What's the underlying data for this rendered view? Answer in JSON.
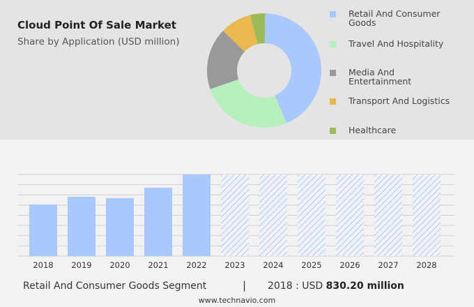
{
  "title": "Cloud Point Of Sale Market",
  "subtitle": "Share by Application (USD million)",
  "chart_data": [
    {
      "type": "pie",
      "donut": true,
      "segments": [
        {
          "name": "Retail And Consumer Goods",
          "share": 43.6,
          "color": "#a9c9fc"
        },
        {
          "name": "Travel And Hospitality",
          "share": 26.1,
          "color": "#b8efbf"
        },
        {
          "name": "Media And Entertainment",
          "share": 17.5,
          "color": "#999999"
        },
        {
          "name": "Transport And Logistics",
          "share": 8.9,
          "color": "#e9b94f"
        },
        {
          "name": "Healthcare",
          "share": 4.2,
          "color": "#9ebb5a"
        }
      ],
      "legend_position": "right"
    },
    {
      "type": "bar",
      "categories": [
        "2018",
        "2019",
        "2020",
        "2021",
        "2022",
        "2023",
        "2024",
        "2025",
        "2026",
        "2027",
        "2028"
      ],
      "values": [
        830.2,
        954,
        931,
        1100,
        1313,
        null,
        null,
        null,
        null,
        null,
        null
      ],
      "forecast_categories": [
        "2023",
        "2024",
        "2025",
        "2026",
        "2027",
        "2028"
      ],
      "forecast_style": "hatched",
      "color": "#a9c9fc",
      "grid": true,
      "ylim": [
        0,
        1313
      ]
    }
  ],
  "legend_labels": [
    [
      "Retail And Consumer",
      "Goods"
    ],
    [
      "Travel And Hospitality"
    ],
    [
      "Media And",
      "Entertainment"
    ],
    [
      "Transport And Logistics"
    ],
    [
      "Healthcare"
    ]
  ],
  "footer": {
    "segment": "Retail And Consumer Goods Segment",
    "separator": "|",
    "year_label": "2018 : USD",
    "value": "830.20 million",
    "url": "www.technavio.com"
  }
}
